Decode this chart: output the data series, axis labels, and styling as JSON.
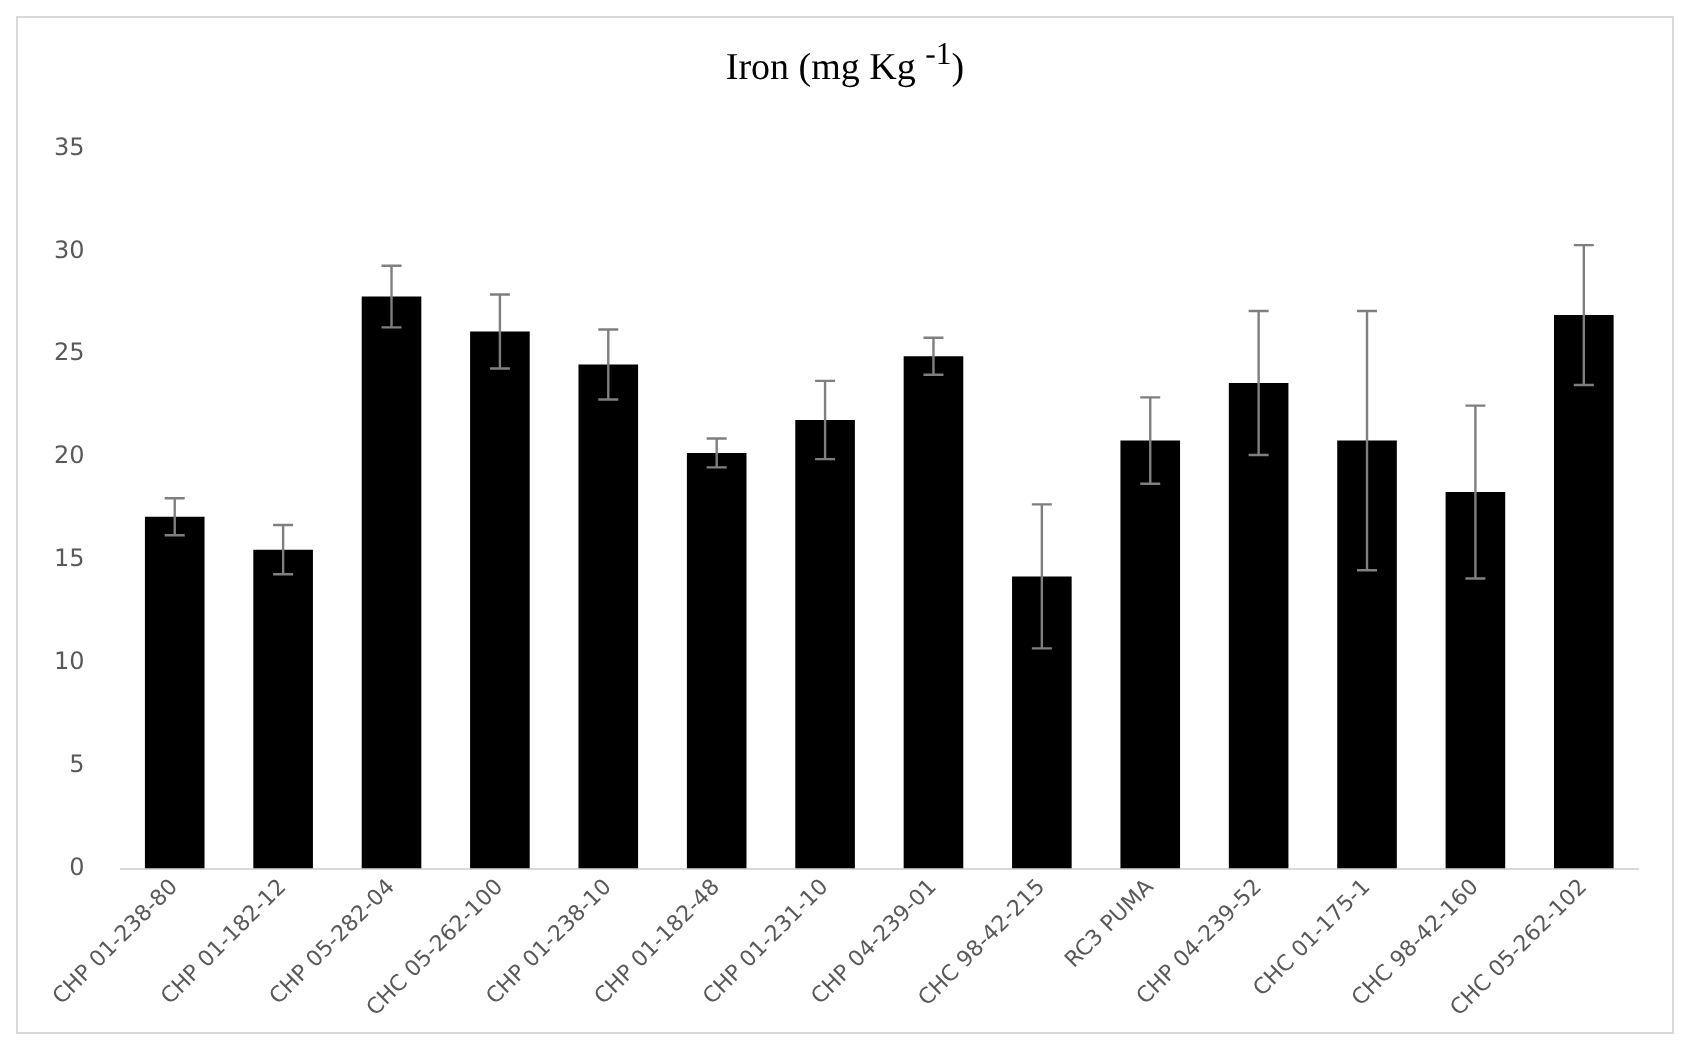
{
  "chart_data": {
    "type": "bar",
    "title": "Iron (mg Kg $^{-1}$)",
    "categories": [
      "CHP 01-238-80",
      "CHP 01-182-12",
      "CHP 05-282-04",
      "CHC 05-262-100",
      "CHP 01-238-10",
      "CHP 01-182-48",
      "CHP 01-231-10",
      "CHP 04-239-01",
      "CHC 98-42-215",
      "RC3 PUMA",
      "CHP 04-239-52",
      "CHC 01-175-1",
      "CHC 98-42-160",
      "CHC 05-262-102"
    ],
    "series": [
      {
        "color": "#000000",
        "values": [
          17.1,
          15.5,
          27.8,
          26.1,
          24.5,
          20.2,
          21.8,
          24.9,
          14.2,
          20.8,
          23.6,
          20.8,
          18.3,
          26.9
        ],
        "errors": [
          0.9,
          1.2,
          1.5,
          1.8,
          1.7,
          0.7,
          1.9,
          0.9,
          3.5,
          2.1,
          3.5,
          6.3,
          4.2,
          3.4
        ]
      }
    ],
    "ylim": [
      0,
      35
    ],
    "yticks": [
      0,
      5,
      10,
      15,
      20,
      25,
      30,
      35
    ],
    "grid": false,
    "legend": false
  }
}
